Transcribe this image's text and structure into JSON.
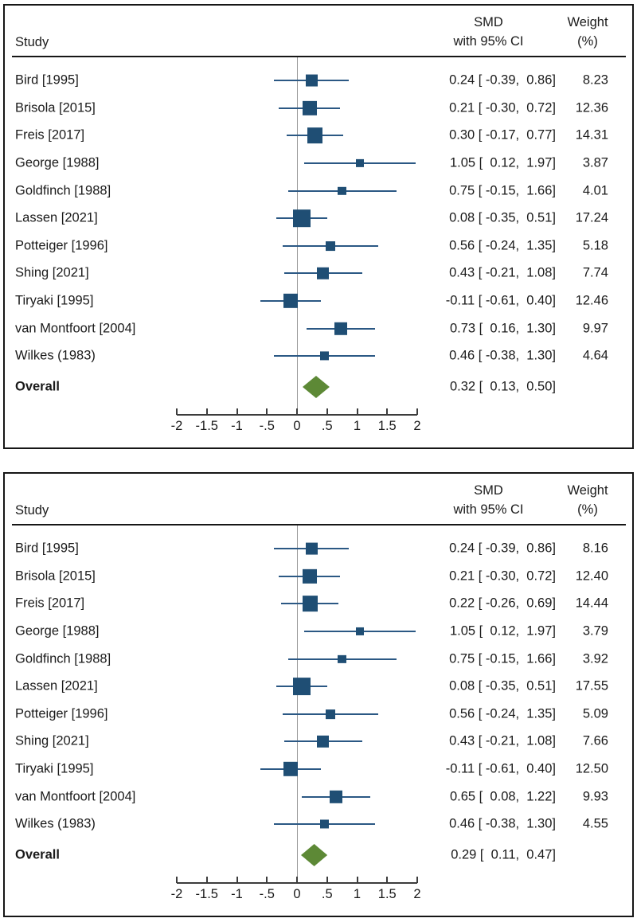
{
  "colors": {
    "marker_square": "#1f4e74",
    "ci_line": "#2b5884",
    "diamond": "#5d8936",
    "zero_line": "#9a9a9a",
    "axis": "#3c3c3c",
    "text": "#1a1a1a",
    "border": "#161616"
  },
  "chart_data": [
    {
      "type": "forest",
      "panel": "top",
      "columns": {
        "study": "Study",
        "effect_line1": "SMD",
        "effect_line2": "with 95% CI",
        "weight_line1": "Weight",
        "weight_line2": "(%)"
      },
      "axis": {
        "range": [
          -2,
          2
        ],
        "zero_reference": 0,
        "ticks": [
          -2,
          -1.5,
          -1,
          -0.5,
          0,
          0.5,
          1,
          1.5,
          2
        ],
        "tick_labels": [
          "-2",
          "-1.5",
          "-1",
          "-.5",
          "0",
          ".5",
          "1",
          "1.5",
          "2"
        ]
      },
      "studies": [
        {
          "label": "Bird [1995]",
          "est": 0.24,
          "lo": -0.39,
          "hi": 0.86,
          "weight": 8.23,
          "value_text": "0.24 [ -0.39,  0.86]",
          "weight_text": "8.23"
        },
        {
          "label": "Brisola [2015]",
          "est": 0.21,
          "lo": -0.3,
          "hi": 0.72,
          "weight": 12.36,
          "value_text": "0.21 [ -0.30,  0.72]",
          "weight_text": "12.36"
        },
        {
          "label": "Freis [2017]",
          "est": 0.3,
          "lo": -0.17,
          "hi": 0.77,
          "weight": 14.31,
          "value_text": "0.30 [ -0.17,  0.77]",
          "weight_text": "14.31"
        },
        {
          "label": "George [1988]",
          "est": 1.05,
          "lo": 0.12,
          "hi": 1.97,
          "weight": 3.87,
          "value_text": "1.05 [  0.12,  1.97]",
          "weight_text": "3.87"
        },
        {
          "label": "Goldfinch [1988]",
          "est": 0.75,
          "lo": -0.15,
          "hi": 1.66,
          "weight": 4.01,
          "value_text": "0.75 [ -0.15,  1.66]",
          "weight_text": "4.01"
        },
        {
          "label": "Lassen [2021]",
          "est": 0.08,
          "lo": -0.35,
          "hi": 0.51,
          "weight": 17.24,
          "value_text": "0.08 [ -0.35,  0.51]",
          "weight_text": "17.24"
        },
        {
          "label": "Potteiger [1996]",
          "est": 0.56,
          "lo": -0.24,
          "hi": 1.35,
          "weight": 5.18,
          "value_text": "0.56 [ -0.24,  1.35]",
          "weight_text": "5.18"
        },
        {
          "label": "Shing [2021]",
          "est": 0.43,
          "lo": -0.21,
          "hi": 1.08,
          "weight": 7.74,
          "value_text": "0.43 [ -0.21,  1.08]",
          "weight_text": "7.74"
        },
        {
          "label": "Tiryaki [1995]",
          "est": -0.11,
          "lo": -0.61,
          "hi": 0.4,
          "weight": 12.46,
          "value_text": "-0.11 [ -0.61,  0.40]",
          "weight_text": "12.46"
        },
        {
          "label": "van Montfoort [2004]",
          "est": 0.73,
          "lo": 0.16,
          "hi": 1.3,
          "weight": 9.97,
          "value_text": "0.73 [  0.16,  1.30]",
          "weight_text": "9.97"
        },
        {
          "label": "Wilkes (1983)",
          "est": 0.46,
          "lo": -0.38,
          "hi": 1.3,
          "weight": 4.64,
          "value_text": "0.46 [ -0.38,  1.30]",
          "weight_text": "4.64"
        }
      ],
      "overall": {
        "label": "Overall",
        "est": 0.32,
        "lo": 0.13,
        "hi": 0.5,
        "value_text": "0.32 [  0.13,  0.50]"
      }
    },
    {
      "type": "forest",
      "panel": "bottom",
      "columns": {
        "study": "Study",
        "effect_line1": "SMD",
        "effect_line2": "with 95% CI",
        "weight_line1": "Weight",
        "weight_line2": "(%)"
      },
      "axis": {
        "range": [
          -2,
          2
        ],
        "zero_reference": 0,
        "ticks": [
          -2,
          -1.5,
          -1,
          -0.5,
          0,
          0.5,
          1,
          1.5,
          2
        ],
        "tick_labels": [
          "-2",
          "-1.5",
          "-1",
          "-.5",
          "0",
          ".5",
          "1",
          "1.5",
          "2"
        ]
      },
      "studies": [
        {
          "label": "Bird [1995]",
          "est": 0.24,
          "lo": -0.39,
          "hi": 0.86,
          "weight": 8.16,
          "value_text": "0.24 [ -0.39,  0.86]",
          "weight_text": "8.16"
        },
        {
          "label": "Brisola [2015]",
          "est": 0.21,
          "lo": -0.3,
          "hi": 0.72,
          "weight": 12.4,
          "value_text": "0.21 [ -0.30,  0.72]",
          "weight_text": "12.40"
        },
        {
          "label": "Freis [2017]",
          "est": 0.22,
          "lo": -0.26,
          "hi": 0.69,
          "weight": 14.44,
          "value_text": "0.22 [ -0.26,  0.69]",
          "weight_text": "14.44"
        },
        {
          "label": "George [1988]",
          "est": 1.05,
          "lo": 0.12,
          "hi": 1.97,
          "weight": 3.79,
          "value_text": "1.05 [  0.12,  1.97]",
          "weight_text": "3.79"
        },
        {
          "label": "Goldfinch [1988]",
          "est": 0.75,
          "lo": -0.15,
          "hi": 1.66,
          "weight": 3.92,
          "value_text": "0.75 [ -0.15,  1.66]",
          "weight_text": "3.92"
        },
        {
          "label": "Lassen [2021]",
          "est": 0.08,
          "lo": -0.35,
          "hi": 0.51,
          "weight": 17.55,
          "value_text": "0.08 [ -0.35,  0.51]",
          "weight_text": "17.55"
        },
        {
          "label": "Potteiger [1996]",
          "est": 0.56,
          "lo": -0.24,
          "hi": 1.35,
          "weight": 5.09,
          "value_text": "0.56 [ -0.24,  1.35]",
          "weight_text": "5.09"
        },
        {
          "label": "Shing [2021]",
          "est": 0.43,
          "lo": -0.21,
          "hi": 1.08,
          "weight": 7.66,
          "value_text": "0.43 [ -0.21,  1.08]",
          "weight_text": "7.66"
        },
        {
          "label": "Tiryaki [1995]",
          "est": -0.11,
          "lo": -0.61,
          "hi": 0.4,
          "weight": 12.5,
          "value_text": "-0.11 [ -0.61,  0.40]",
          "weight_text": "12.50"
        },
        {
          "label": "van Montfoort [2004]",
          "est": 0.65,
          "lo": 0.08,
          "hi": 1.22,
          "weight": 9.93,
          "value_text": "0.65 [  0.08,  1.22]",
          "weight_text": "9.93"
        },
        {
          "label": "Wilkes (1983)",
          "est": 0.46,
          "lo": -0.38,
          "hi": 1.3,
          "weight": 4.55,
          "value_text": "0.46 [ -0.38,  1.30]",
          "weight_text": "4.55"
        }
      ],
      "overall": {
        "label": "Overall",
        "est": 0.29,
        "lo": 0.11,
        "hi": 0.47,
        "value_text": "0.29 [  0.11,  0.47]"
      }
    }
  ]
}
